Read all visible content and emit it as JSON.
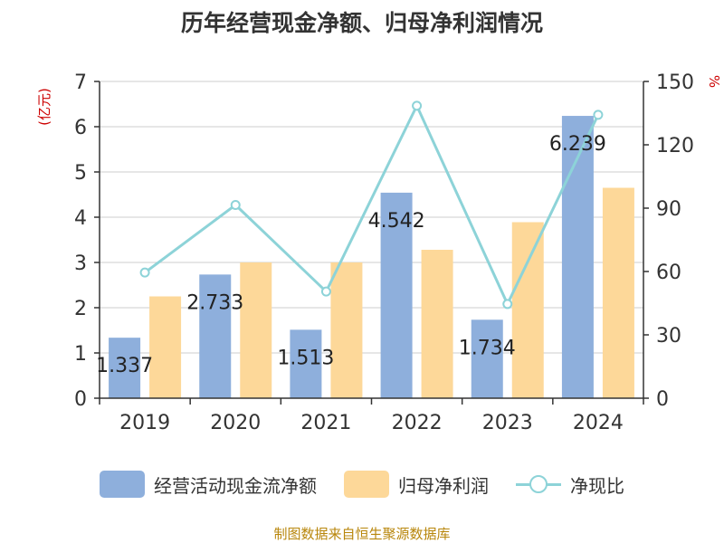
{
  "chart_data": {
    "type": "bar",
    "title": "历年经营现金净额、归母净利润情况",
    "categories": [
      "2019",
      "2020",
      "2021",
      "2022",
      "2023",
      "2024"
    ],
    "left_axis": {
      "unit_label": "(亿元)",
      "range": [
        0,
        7
      ],
      "ticks": [
        "0",
        "1",
        "2",
        "3",
        "4",
        "5",
        "6",
        "7"
      ]
    },
    "right_axis": {
      "unit_label": "%",
      "range": [
        0,
        150
      ],
      "ticks": [
        "0",
        "30",
        "60",
        "90",
        "120",
        "150"
      ]
    },
    "series": [
      {
        "name": "经营活动现金流净额",
        "type": "bar",
        "axis": "left",
        "color": "#8eafdc",
        "values": [
          1.337,
          2.733,
          1.513,
          4.542,
          1.734,
          6.239
        ],
        "labels": [
          "1.337",
          "2.733",
          "1.513",
          "4.542",
          "1.734",
          "6.239"
        ]
      },
      {
        "name": "归母净利润",
        "type": "bar",
        "axis": "left",
        "color": "#fdd899",
        "values": [
          2.25,
          3.0,
          3.0,
          3.28,
          3.89,
          4.65
        ]
      },
      {
        "name": "净现比",
        "type": "line",
        "axis": "right",
        "color": "#8dd3d8",
        "values": [
          59.5,
          91.5,
          50.5,
          138.5,
          44.6,
          134.2
        ]
      }
    ],
    "grid": true,
    "legend_position": "bottom"
  },
  "source_note": "制图数据来自恒生聚源数据库"
}
